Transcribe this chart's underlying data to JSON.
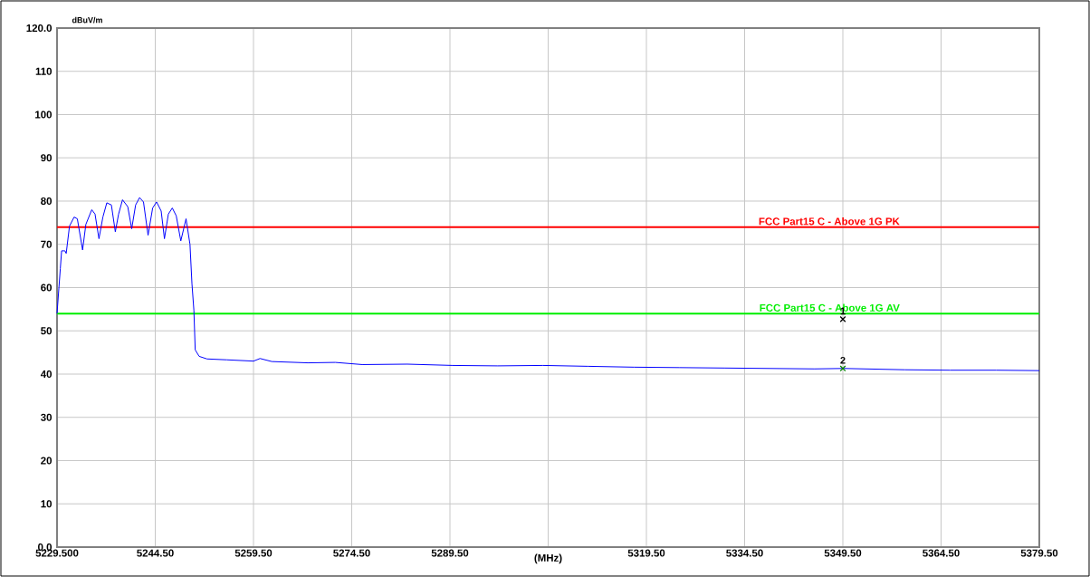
{
  "chart_data": {
    "type": "line",
    "xlabel": "(MHz)",
    "ylabel": "dBuV/m",
    "xlim": [
      5229.5,
      5379.5
    ],
    "ylim": [
      0,
      120
    ],
    "xticks": [
      {
        "value": 5229.5,
        "label": "5229.500"
      },
      {
        "value": 5244.5,
        "label": "5244.50"
      },
      {
        "value": 5259.5,
        "label": "5259.50"
      },
      {
        "value": 5274.5,
        "label": "5274.50"
      },
      {
        "value": 5289.5,
        "label": "5289.50"
      },
      {
        "value": 5304.5,
        "label": null
      },
      {
        "value": 5319.5,
        "label": "5319.50"
      },
      {
        "value": 5334.5,
        "label": "5334.50"
      },
      {
        "value": 5349.5,
        "label": "5349.50"
      },
      {
        "value": 5364.5,
        "label": "5364.50"
      },
      {
        "value": 5379.5,
        "label": "5379.50"
      }
    ],
    "yticks": [
      {
        "value": 0,
        "label": "0.0"
      },
      10,
      20,
      30,
      40,
      50,
      60,
      70,
      80,
      90,
      100,
      110,
      {
        "value": 120,
        "label": "120.0"
      }
    ],
    "grid": true,
    "series": [
      {
        "color": "#0000ff",
        "marker": "none",
        "x": [
          5229.5,
          5230.0,
          5230.2,
          5230.7,
          5230.9,
          5231.4,
          5232.1,
          5232.6,
          5233.4,
          5233.9,
          5234.8,
          5235.3,
          5235.9,
          5236.5,
          5237.1,
          5237.8,
          5238.4,
          5238.9,
          5239.5,
          5240.3,
          5240.9,
          5241.5,
          5242.1,
          5242.7,
          5243.4,
          5244.1,
          5244.7,
          5245.4,
          5245.9,
          5246.5,
          5247.1,
          5247.7,
          5248.4,
          5249.2,
          5249.8,
          5250.1,
          5250.4,
          5250.6,
          5251.2,
          5252.4,
          5255.4,
          5259.5,
          5260.5,
          5262.3,
          5267.8,
          5272.0,
          5276.1,
          5283.0,
          5289.9,
          5296.8,
          5303.7,
          5310.6,
          5317.6,
          5324.5,
          5331.4,
          5338.3,
          5345.2,
          5349.6,
          5359.0,
          5365.9,
          5372.9,
          5379.5
        ],
        "values": [
          54.0,
          64.4,
          68.5,
          68.5,
          67.9,
          74.2,
          76.3,
          75.9,
          68.7,
          74.6,
          78.0,
          77.0,
          71.3,
          76.3,
          79.6,
          79.1,
          72.9,
          77.0,
          80.3,
          78.7,
          73.6,
          79.1,
          80.8,
          79.8,
          72.1,
          78.4,
          79.8,
          77.7,
          71.3,
          77.0,
          78.4,
          76.6,
          70.8,
          75.9,
          70.0,
          60.9,
          54.7,
          45.6,
          44.1,
          43.5,
          43.3,
          43.0,
          43.6,
          42.9,
          42.6,
          42.7,
          42.2,
          42.3,
          42.0,
          41.9,
          42.0,
          41.8,
          41.6,
          41.5,
          41.4,
          41.3,
          41.2,
          41.3,
          41.0,
          40.9,
          40.9,
          40.8
        ]
      },
      {
        "type": "scatter",
        "color": "#000000",
        "marker": "cross",
        "x": [
          5349.5
        ],
        "values": [
          52.7
        ]
      },
      {
        "type": "scatter",
        "color": "#008000",
        "marker": "cross",
        "x": [
          5349.5
        ],
        "values": [
          41.3
        ]
      }
    ],
    "ref_lines": [
      {
        "axis": "y",
        "value": 74,
        "label": "FCC Part15 C - Above 1G PK",
        "color": "#ff0000"
      },
      {
        "axis": "y",
        "value": 54,
        "label": "FCC Part15 C - Above 1G AV",
        "color": "#00ee00"
      }
    ],
    "annotations": [
      {
        "text": "1",
        "x": 5349.5,
        "y": 52.7
      },
      {
        "text": "2",
        "x": 5349.5,
        "y": 41.3
      }
    ]
  }
}
